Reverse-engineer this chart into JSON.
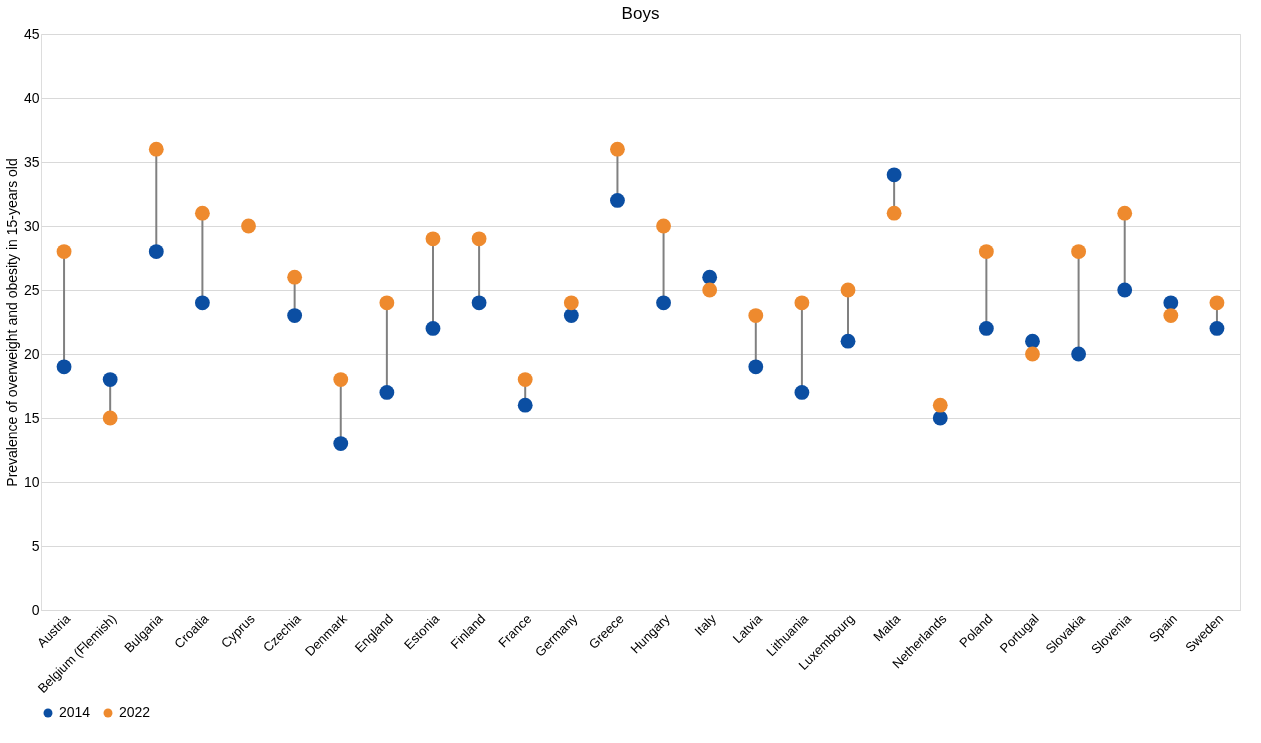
{
  "chart_data": {
    "type": "scatter",
    "title": "Boys",
    "ylabel": "Prevalence  of overweight and obesity in 15-years old",
    "categories": [
      "Austria",
      "Belgium (Flemish)",
      "Bulgaria",
      "Croatia",
      "Cyprus",
      "Czechia",
      "Denmark",
      "England",
      "Estonia",
      "Finland",
      "France",
      "Germany",
      "Greece",
      "Hungary",
      "Italy",
      "Latvia",
      "Lithuania",
      "Luxembourg",
      "Malta",
      "Netherlands",
      "Poland",
      "Portugal",
      "Slovakia",
      "Slovenia",
      "Spain",
      "Sweden"
    ],
    "series": [
      {
        "name": "2014",
        "color": "#0b4ea2",
        "values": [
          19,
          18,
          28,
          24,
          null,
          23,
          13,
          17,
          22,
          24,
          16,
          23,
          32,
          24,
          26,
          19,
          17,
          21,
          34,
          15,
          22,
          21,
          20,
          25,
          24,
          22
        ]
      },
      {
        "name": "2022",
        "color": "#ee8a2e",
        "values": [
          28,
          15,
          36,
          31,
          30,
          26,
          18,
          24,
          29,
          29,
          18,
          24,
          36,
          30,
          25,
          23,
          24,
          25,
          31,
          16,
          28,
          20,
          28,
          31,
          23,
          24
        ]
      }
    ],
    "ylim": [
      0,
      45
    ],
    "yticks": [
      0,
      5,
      10,
      15,
      20,
      25,
      30,
      35,
      40,
      45
    ],
    "grid": "y",
    "legend": "bottom",
    "marker": "circle"
  }
}
